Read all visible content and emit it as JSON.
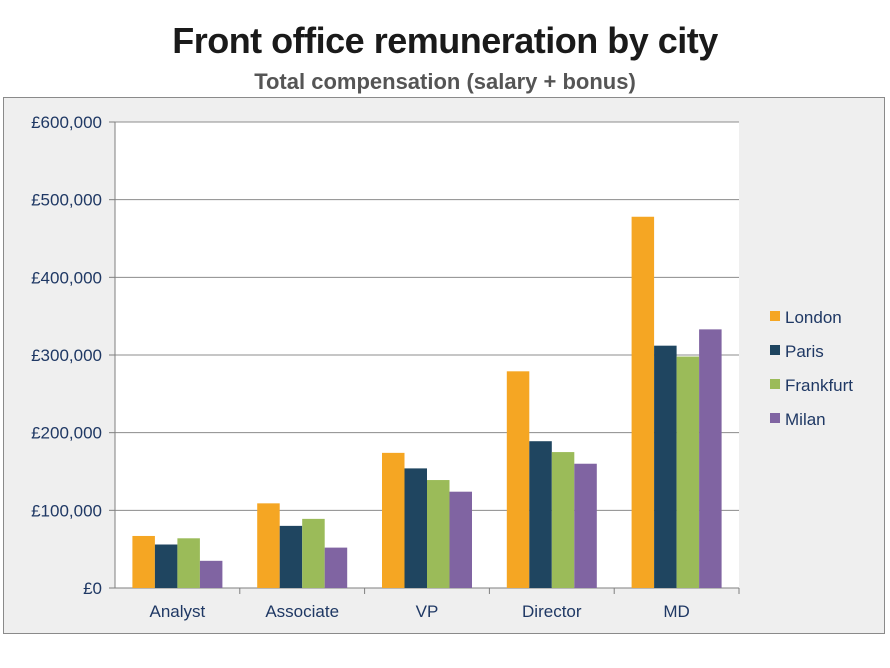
{
  "chart_data": {
    "type": "bar",
    "title": "Front office remuneration by city",
    "subtitle": "Total compensation (salary + bonus)",
    "xlabel": "",
    "ylabel": "",
    "categories": [
      "Analyst",
      "Associate",
      "VP",
      "Director",
      "MD"
    ],
    "series": [
      {
        "name": "London",
        "color": "#f5a623",
        "values": [
          67000,
          109000,
          174000,
          279000,
          478000
        ]
      },
      {
        "name": "Paris",
        "color": "#1f4560",
        "values": [
          56000,
          80000,
          154000,
          189000,
          312000
        ]
      },
      {
        "name": "Frankfurt",
        "color": "#9bbb59",
        "values": [
          64000,
          89000,
          139000,
          175000,
          298000
        ]
      },
      {
        "name": "Milan",
        "color": "#8064a2",
        "values": [
          35000,
          52000,
          124000,
          160000,
          333000
        ]
      }
    ],
    "ylim": [
      0,
      600000
    ],
    "yticks": [
      0,
      100000,
      200000,
      300000,
      400000,
      500000,
      600000
    ],
    "ytick_labels": [
      "£0",
      "£100,000",
      "£200,000",
      "£300,000",
      "£400,000",
      "£500,000",
      "£600,000"
    ],
    "grid": true,
    "legend_position": "right"
  }
}
